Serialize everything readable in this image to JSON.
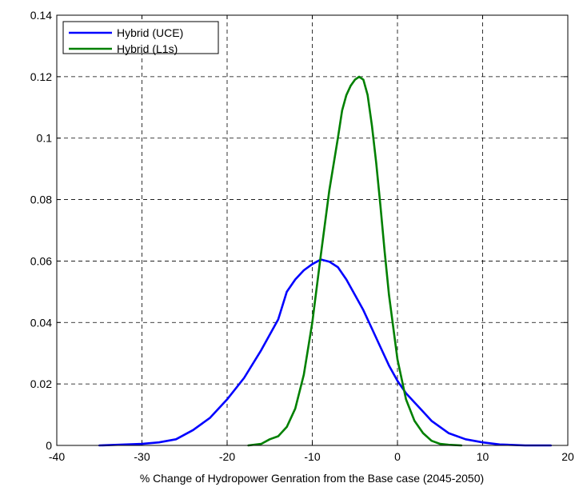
{
  "chart_data": {
    "type": "line",
    "title": "",
    "xlabel": "% Change of Hydropower Genration from the Base case (2045-2050)",
    "ylabel": "",
    "xlim": [
      -40,
      20
    ],
    "ylim": [
      0,
      0.14
    ],
    "xticks": [
      -40,
      -30,
      -20,
      -10,
      0,
      10,
      20
    ],
    "yticks": [
      0,
      0.02,
      0.04,
      0.06,
      0.08,
      0.1,
      0.12,
      0.14
    ],
    "xtick_labels": [
      "-40",
      "-30",
      "-20",
      "-10",
      "0",
      "10",
      "20"
    ],
    "ytick_labels": [
      "0",
      "0.02",
      "0.04",
      "0.06",
      "0.08",
      "0.1",
      "0.12",
      "0.14"
    ],
    "grid": true,
    "legend": "top-left",
    "series": [
      {
        "name": "Hybrid (UCE)",
        "color": "#0000ff",
        "x": [
          -35,
          -30,
          -28,
          -26,
          -24,
          -22,
          -20,
          -18,
          -16,
          -14,
          -13,
          -12,
          -11,
          -10,
          -9,
          -8,
          -7,
          -6,
          -5,
          -4,
          -3,
          -2,
          -1,
          0,
          1,
          2,
          3,
          4,
          6,
          8,
          10,
          12,
          15,
          18
        ],
        "y": [
          0,
          0.0005,
          0.001,
          0.002,
          0.005,
          0.009,
          0.015,
          0.022,
          0.031,
          0.041,
          0.05,
          0.054,
          0.057,
          0.059,
          0.0605,
          0.0598,
          0.058,
          0.054,
          0.049,
          0.044,
          0.038,
          0.032,
          0.026,
          0.021,
          0.017,
          0.014,
          0.011,
          0.008,
          0.004,
          0.002,
          0.001,
          0.0003,
          0,
          0
        ]
      },
      {
        "name": "Hybrid (L1s)",
        "color": "#008000",
        "x": [
          -17.5,
          -16,
          -15,
          -14,
          -13,
          -12,
          -11,
          -10,
          -9,
          -8,
          -7,
          -6.5,
          -6,
          -5.5,
          -5,
          -4.5,
          -4,
          -3.5,
          -3,
          -2.5,
          -2,
          -1.5,
          -1,
          0,
          1,
          2,
          3,
          4,
          5,
          6,
          7.5
        ],
        "y": [
          0,
          0.0005,
          0.002,
          0.003,
          0.006,
          0.012,
          0.023,
          0.04,
          0.062,
          0.083,
          0.1,
          0.109,
          0.114,
          0.117,
          0.119,
          0.12,
          0.119,
          0.114,
          0.104,
          0.092,
          0.078,
          0.063,
          0.049,
          0.028,
          0.015,
          0.008,
          0.004,
          0.0015,
          0.0005,
          0.0002,
          0
        ]
      }
    ]
  }
}
